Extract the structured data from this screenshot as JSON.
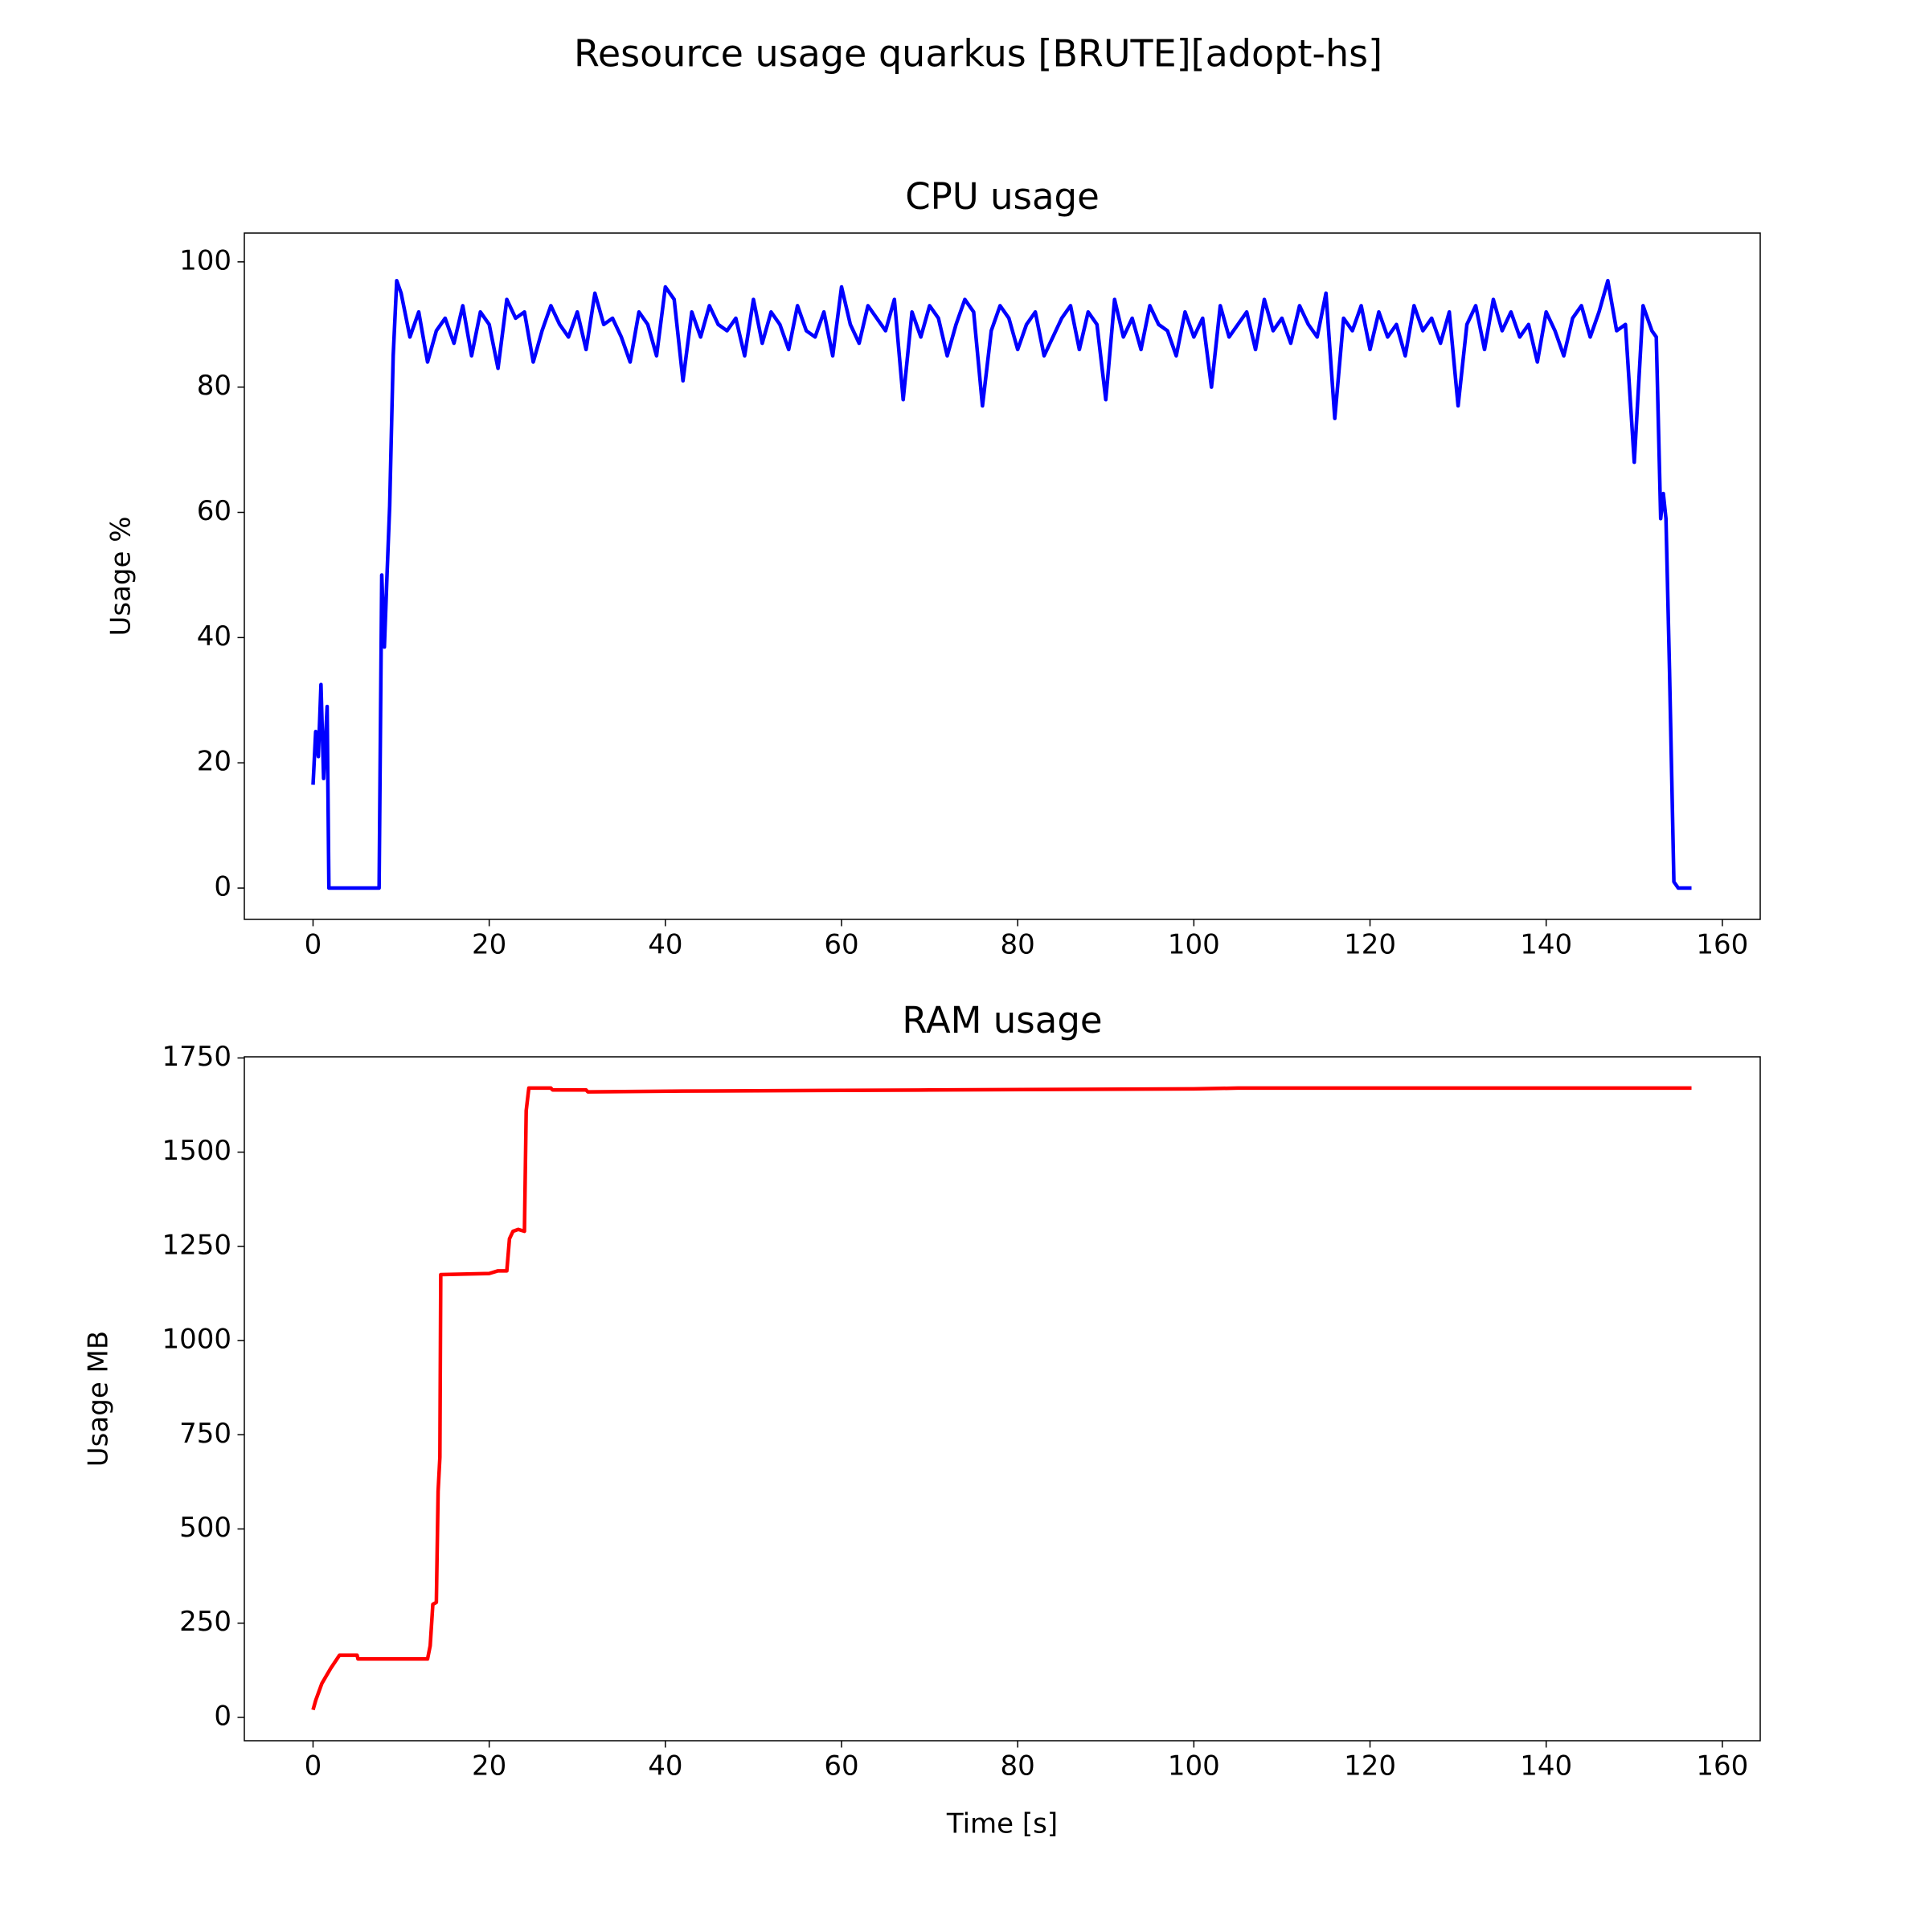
{
  "title": "Resource usage quarkus [BRUTE][adopt-hs]",
  "chart_data": [
    {
      "type": "line",
      "title": "CPU usage",
      "ylabel": "Usage %",
      "color": "#0000ff",
      "xlim": [
        -7.8,
        164.3
      ],
      "ylim": [
        -5,
        104.6
      ],
      "xticks": [
        0,
        20,
        40,
        60,
        80,
        100,
        120,
        140,
        160
      ],
      "yticks": [
        0,
        20,
        40,
        60,
        80,
        100
      ],
      "x": [
        0,
        0.3,
        0.6,
        0.9,
        1.2,
        1.6,
        1.8,
        7.5,
        7.8,
        8.1,
        8.4,
        8.7,
        9.1,
        9.5,
        10,
        11,
        12,
        13,
        14,
        15,
        16,
        17,
        18,
        19,
        20,
        21,
        22,
        23,
        24,
        25,
        26,
        27,
        28,
        29,
        30,
        31,
        32,
        33,
        34,
        35,
        36,
        37,
        38,
        39,
        40,
        41,
        42,
        43,
        44,
        45,
        46,
        47,
        48,
        49,
        50,
        51,
        52,
        53,
        54,
        55,
        56,
        57,
        58,
        59,
        60,
        61,
        62,
        63,
        64,
        65,
        66,
        67,
        68,
        69,
        70,
        71,
        72,
        73,
        74,
        75,
        76,
        77,
        78,
        79,
        80,
        81,
        82,
        83,
        84,
        85,
        86,
        87,
        88,
        89,
        90,
        91,
        92,
        93,
        94,
        95,
        96,
        97,
        98,
        99,
        100,
        101,
        102,
        103,
        104,
        105,
        106,
        107,
        108,
        109,
        110,
        111,
        112,
        113,
        114,
        115,
        116,
        117,
        118,
        119,
        120,
        121,
        122,
        123,
        124,
        125,
        126,
        127,
        128,
        129,
        130,
        131,
        132,
        133,
        134,
        135,
        136,
        137,
        138,
        139,
        140,
        141,
        142,
        143,
        144,
        145,
        146,
        147,
        148,
        149,
        150,
        151,
        152,
        152.5,
        153,
        153.3,
        153.6,
        154,
        154.5,
        155,
        156.5
      ],
      "values": [
        16.5,
        25,
        21,
        32.5,
        17.5,
        29,
        0,
        0,
        50,
        38.5,
        50,
        61,
        85,
        97,
        95,
        88,
        92,
        84,
        89,
        91,
        87,
        93,
        85,
        92,
        90,
        83,
        94,
        91,
        92,
        84,
        89,
        93,
        90,
        88,
        92,
        86,
        95,
        90,
        91,
        88,
        84,
        92,
        90,
        85,
        96,
        94,
        81,
        92,
        88,
        93,
        90,
        89,
        91,
        85,
        94,
        87,
        92,
        90,
        86,
        93,
        89,
        88,
        92,
        85,
        96,
        90,
        87,
        93,
        91,
        89,
        94,
        78,
        92,
        88,
        93,
        91,
        85,
        90,
        94,
        92,
        77,
        89,
        93,
        91,
        86,
        90,
        92,
        85,
        88,
        91,
        93,
        86,
        92,
        90,
        78,
        94,
        88,
        91,
        86,
        93,
        90,
        89,
        85,
        92,
        88,
        91,
        80,
        93,
        88,
        90,
        92,
        86,
        94,
        89,
        91,
        87,
        93,
        90,
        88,
        95,
        75,
        91,
        89,
        93,
        86,
        92,
        88,
        90,
        85,
        93,
        89,
        91,
        87,
        92,
        77,
        90,
        93,
        86,
        94,
        89,
        92,
        88,
        90,
        84,
        92,
        89,
        85,
        91,
        93,
        88,
        92,
        97,
        89,
        90,
        68,
        93,
        89,
        88,
        59,
        63,
        59,
        35,
        1,
        0,
        0
      ]
    },
    {
      "type": "line",
      "title": "RAM usage",
      "xlabel": "Time [s]",
      "ylabel": "Usage MB",
      "color": "#ff0000",
      "xlim": [
        -7.8,
        164.3
      ],
      "ylim": [
        -62,
        1753
      ],
      "xticks": [
        0,
        20,
        40,
        60,
        80,
        100,
        120,
        140,
        160
      ],
      "yticks": [
        0,
        250,
        500,
        750,
        1000,
        1250,
        1500,
        1750
      ],
      "x": [
        0,
        0.3,
        1,
        2,
        3,
        4,
        5,
        5.1,
        13,
        13.3,
        13.6,
        14,
        14.2,
        14.4,
        14.5,
        20,
        21,
        22,
        22.3,
        22.7,
        23.3,
        24,
        24.2,
        24.5,
        27,
        27.2,
        31,
        31.2,
        42,
        70,
        100,
        105,
        156.5
      ],
      "values": [
        20,
        45,
        90,
        130,
        165,
        165,
        165,
        155,
        155,
        190,
        300,
        305,
        600,
        690,
        1175,
        1178,
        1185,
        1185,
        1270,
        1290,
        1295,
        1290,
        1610,
        1670,
        1670,
        1665,
        1665,
        1660,
        1662,
        1665,
        1668,
        1670,
        1670
      ]
    }
  ]
}
